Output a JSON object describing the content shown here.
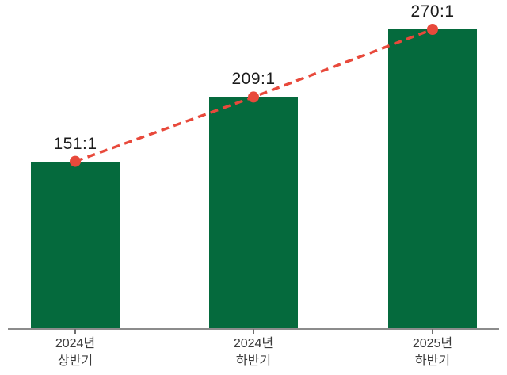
{
  "chart_data": {
    "type": "bar",
    "title": "",
    "xlabel": "",
    "ylabel": "",
    "categories": [
      [
        "2024년",
        "상반기"
      ],
      [
        "2024년",
        "하반기"
      ],
      [
        "2025년",
        "하반기"
      ]
    ],
    "values": [
      151,
      209,
      270
    ],
    "value_labels": [
      "151:1",
      "209:1",
      "270:1"
    ],
    "overlay_line": {
      "type": "line",
      "style": "dashed",
      "marker": "circle",
      "values": [
        151,
        209,
        270
      ]
    },
    "ylim": [
      0,
      296
    ],
    "grid": false,
    "legend": false,
    "axis_ticks_visible": true
  },
  "colors": {
    "bar": "#056a3d",
    "trend_line": "#e8493b",
    "marker": "#e8493b",
    "axis": "#8c8c8c",
    "tick": "#6e6e6e",
    "value_label": "#1b1b1b",
    "category_label": "#3b3b3b"
  }
}
